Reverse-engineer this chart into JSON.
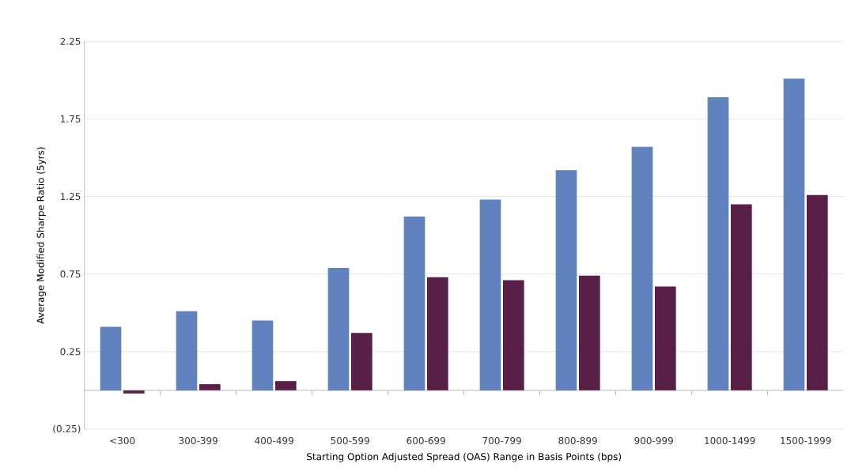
{
  "chart_data": {
    "type": "bar",
    "xlabel": "Starting Option Adjusted Spread (OAS) Range in Basis Points (bps)",
    "ylabel": "Average Modified Sharpe Ratio (5yrs)",
    "categories": [
      "<300",
      "300-399",
      "400-499",
      "500-599",
      "600-699",
      "700-799",
      "800-899",
      "900-999",
      "1000-1499",
      "1500-1999"
    ],
    "series": [
      {
        "color": "#6083c0",
        "values": [
          0.41,
          0.51,
          0.45,
          0.79,
          1.12,
          1.23,
          1.42,
          1.57,
          1.89,
          2.01
        ]
      },
      {
        "color": "#5a1f47",
        "values": [
          -0.02,
          0.04,
          0.06,
          0.37,
          0.73,
          0.71,
          0.74,
          0.67,
          1.2,
          1.26
        ]
      }
    ],
    "ylim": [
      -0.25,
      2.25
    ],
    "yticks": [
      {
        "value": -0.25,
        "label": "(0.25)"
      },
      0.25,
      0.75,
      1.25,
      1.75,
      2.25
    ],
    "grid": "y"
  }
}
